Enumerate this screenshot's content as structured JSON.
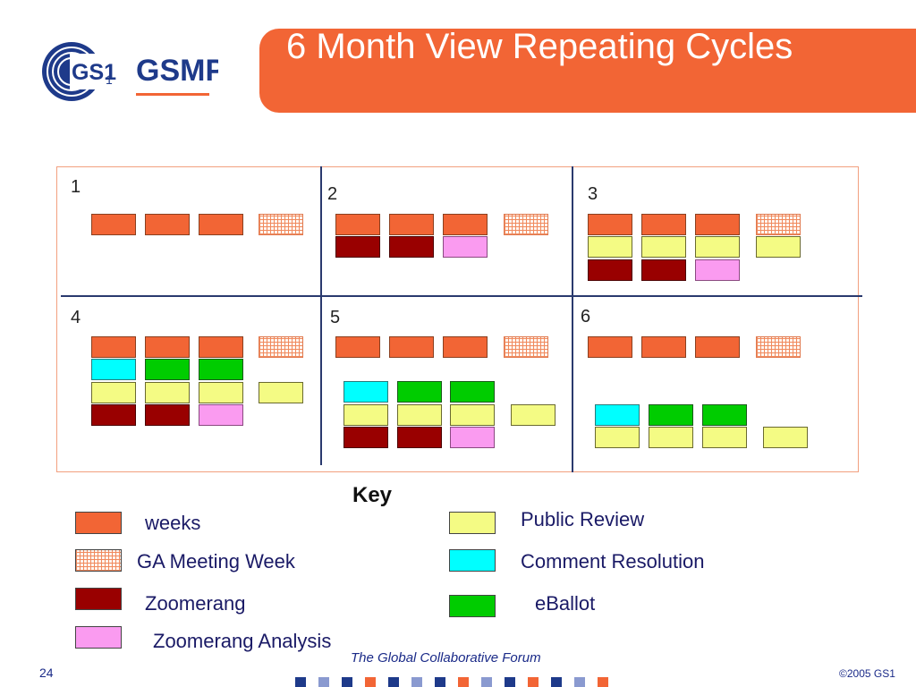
{
  "header": {
    "title": "6 Month View Repeating Cycles"
  },
  "logo": {
    "gs1": "GS1",
    "sub": "1",
    "gsmp": "GSMP",
    "brand_color": "#1e3a8a",
    "accent_color": "#f26535"
  },
  "diagram": {
    "cells": [
      {
        "label": "1",
        "blocks": [
          [
            "weeks",
            "weeks",
            "weeks",
            "ga"
          ]
        ]
      },
      {
        "label": "2",
        "blocks": [
          [
            "weeks",
            "weeks",
            "weeks",
            "ga"
          ],
          [
            "zoomerang",
            "zoomerang",
            "zoomerang_analysis",
            null
          ]
        ]
      },
      {
        "label": "3",
        "blocks": [
          [
            "weeks",
            "weeks",
            "weeks",
            "ga"
          ],
          [
            "public_review",
            "public_review",
            "public_review",
            "public_review"
          ],
          [
            "zoomerang",
            "zoomerang",
            "zoomerang_analysis",
            null
          ]
        ]
      },
      {
        "label": "4",
        "blocks": [
          [
            "weeks",
            "weeks",
            "weeks",
            "ga"
          ],
          [
            "comment_resolution",
            "eballot",
            "eballot",
            null
          ],
          [
            "public_review",
            "public_review",
            "public_review",
            "public_review"
          ],
          [
            "zoomerang",
            "zoomerang",
            "zoomerang_analysis",
            null
          ]
        ]
      },
      {
        "label": "5",
        "blocks": [
          [
            "weeks",
            "weeks",
            "weeks",
            "ga"
          ],
          [
            "comment_resolution",
            "eballot",
            "eballot",
            null
          ],
          [
            "public_review",
            "public_review",
            "public_review",
            "public_review"
          ],
          [
            "zoomerang",
            "zoomerang",
            "zoomerang_analysis",
            null
          ]
        ]
      },
      {
        "label": "6",
        "blocks": [
          [
            "weeks",
            "weeks",
            "weeks",
            "ga"
          ],
          [
            "comment_resolution",
            "eballot",
            "eballot",
            null
          ],
          [
            "public_review",
            "public_review",
            "public_review",
            "public_review"
          ]
        ]
      }
    ]
  },
  "key": {
    "title": "Key",
    "items": {
      "weeks": "weeks",
      "ga": "GA Meeting Week",
      "zoomerang": "Zoomerang",
      "zoomerang_analysis": "Zoomerang Analysis",
      "public_review": "Public Review",
      "comment_resolution": "Comment Resolution",
      "eballot": "eBallot"
    }
  },
  "colors": {
    "weeks": "#f26535",
    "zoomerang": "#990000",
    "zoomerang_analysis": "#fa9bf0",
    "public_review": "#f4fb84",
    "comment_resolution": "#00ffff",
    "eballot": "#00cc00"
  },
  "footer": {
    "tagline": "The Global Collaborative Forum",
    "page": "24",
    "copyright": "©2005 GS1"
  }
}
